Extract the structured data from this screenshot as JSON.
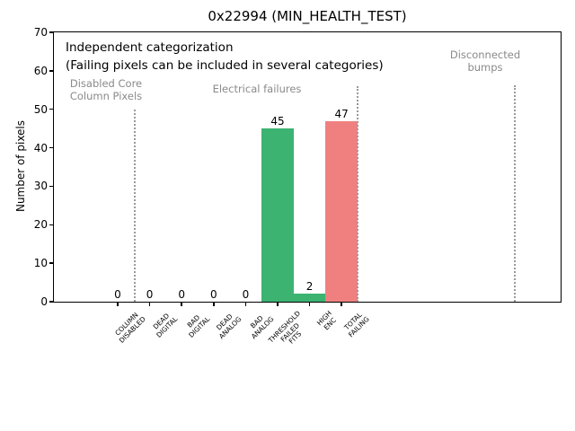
{
  "chart_data": {
    "type": "bar",
    "title": "0x22994 (MIN_HEALTH_TEST)",
    "xlabel": "",
    "ylabel": "Number of pixels",
    "ylim": [
      0,
      70
    ],
    "yticks": [
      0,
      10,
      20,
      30,
      40,
      50,
      60,
      70
    ],
    "grid": false,
    "legend": null,
    "categories": [
      "COLUMN\nDISABLED",
      "DEAD\nDIGITAL",
      "BAD\nDIGITAL",
      "DEAD\nANALOG",
      "BAD\nANALOG",
      "THRESHOLD\nFAILED\nFITS",
      "HIGH\nENC",
      "TOTAL\nFAILING"
    ],
    "values": [
      0,
      0,
      0,
      0,
      0,
      45,
      2,
      47
    ],
    "value_labels": [
      "0",
      "0",
      "0",
      "0",
      "0",
      "45",
      "2",
      "47"
    ],
    "bar_colors": [
      "#3cb371",
      "#3cb371",
      "#3cb371",
      "#3cb371",
      "#3cb371",
      "#3cb371",
      "#3cb371",
      "#f08080"
    ],
    "annotations": {
      "independent_line1": "Independent categorization",
      "independent_line2": "(Failing pixels can be included in several categories)"
    },
    "section_labels": [
      {
        "text": "Disabled Core\nColumn Pixels"
      },
      {
        "text": "Electrical failures"
      },
      {
        "text": "Disconnected\nbumps"
      }
    ],
    "colors": {
      "bar_green": "#3cb371",
      "bar_red": "#f08080",
      "section_text": "#8a8a8a",
      "divider": "#9a9a9a",
      "axis": "#000000"
    }
  }
}
